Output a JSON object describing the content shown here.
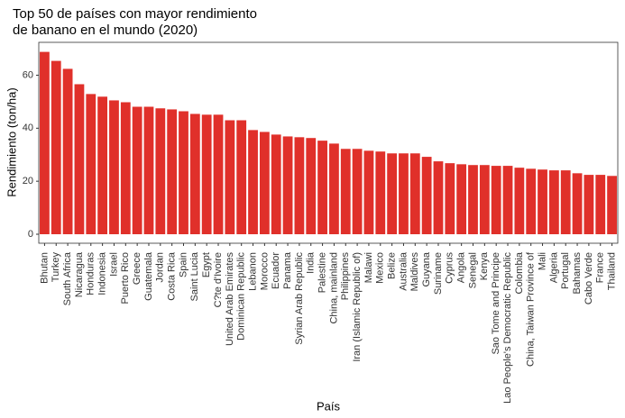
{
  "chart_data": {
    "type": "bar",
    "title": [
      "Top 50 de países con mayor rendimiento",
      "de banano en el mundo (2020)"
    ],
    "x_label": "País",
    "y_label": "Rendimiento (ton/ha)",
    "categories": [
      "Bhutan",
      "Turkey",
      "South Africa",
      "Nicaragua",
      "Honduras",
      "Indonesia",
      "Israel",
      "Puerto Rico",
      "Greece",
      "Guatemala",
      "Jordan",
      "Costa Rica",
      "Spain",
      "Saint Lucia",
      "Egypt",
      "C?te d'Ivoire",
      "United Arab Emirates",
      "Dominican Republic",
      "Lebanon",
      "Morocco",
      "Ecuador",
      "Panama",
      "Syrian Arab Republic",
      "India",
      "Palestine",
      "China, mainland",
      "Philippines",
      "Iran (Islamic Republic of)",
      "Malawi",
      "Mexico",
      "Belize",
      "Australia",
      "Maldives",
      "Guyana",
      "Suriname",
      "Cyprus",
      "Angola",
      "Senegal",
      "Kenya",
      "Sao Tome and Principe",
      "Lao People's Democratic Republic",
      "Colombia",
      "China, Taiwan Province of",
      "Mali",
      "Algeria",
      "Portugal",
      "Bahamas",
      "Cabo Verde",
      "France",
      "Thailand"
    ],
    "values": [
      68.8,
      65.4,
      62.4,
      56.6,
      52.9,
      51.9,
      50.5,
      49.8,
      48.1,
      48.1,
      47.5,
      47.1,
      46.4,
      45.4,
      45.1,
      45.1,
      43,
      43,
      39.3,
      38.6,
      37.6,
      36.9,
      36.6,
      36.3,
      35.3,
      34.2,
      32.2,
      32.2,
      31.5,
      31.2,
      30.5,
      30.5,
      30.5,
      29.2,
      27.5,
      26.8,
      26.4,
      26.1,
      26.1,
      25.8,
      25.8,
      25.1,
      24.7,
      24.4,
      24.1,
      24.1,
      23,
      22.4,
      22.4,
      22
    ],
    "color": "#e0302a",
    "ylim": [
      -3.4,
      72.4
    ],
    "yticks": [
      0,
      20,
      40,
      60
    ]
  }
}
